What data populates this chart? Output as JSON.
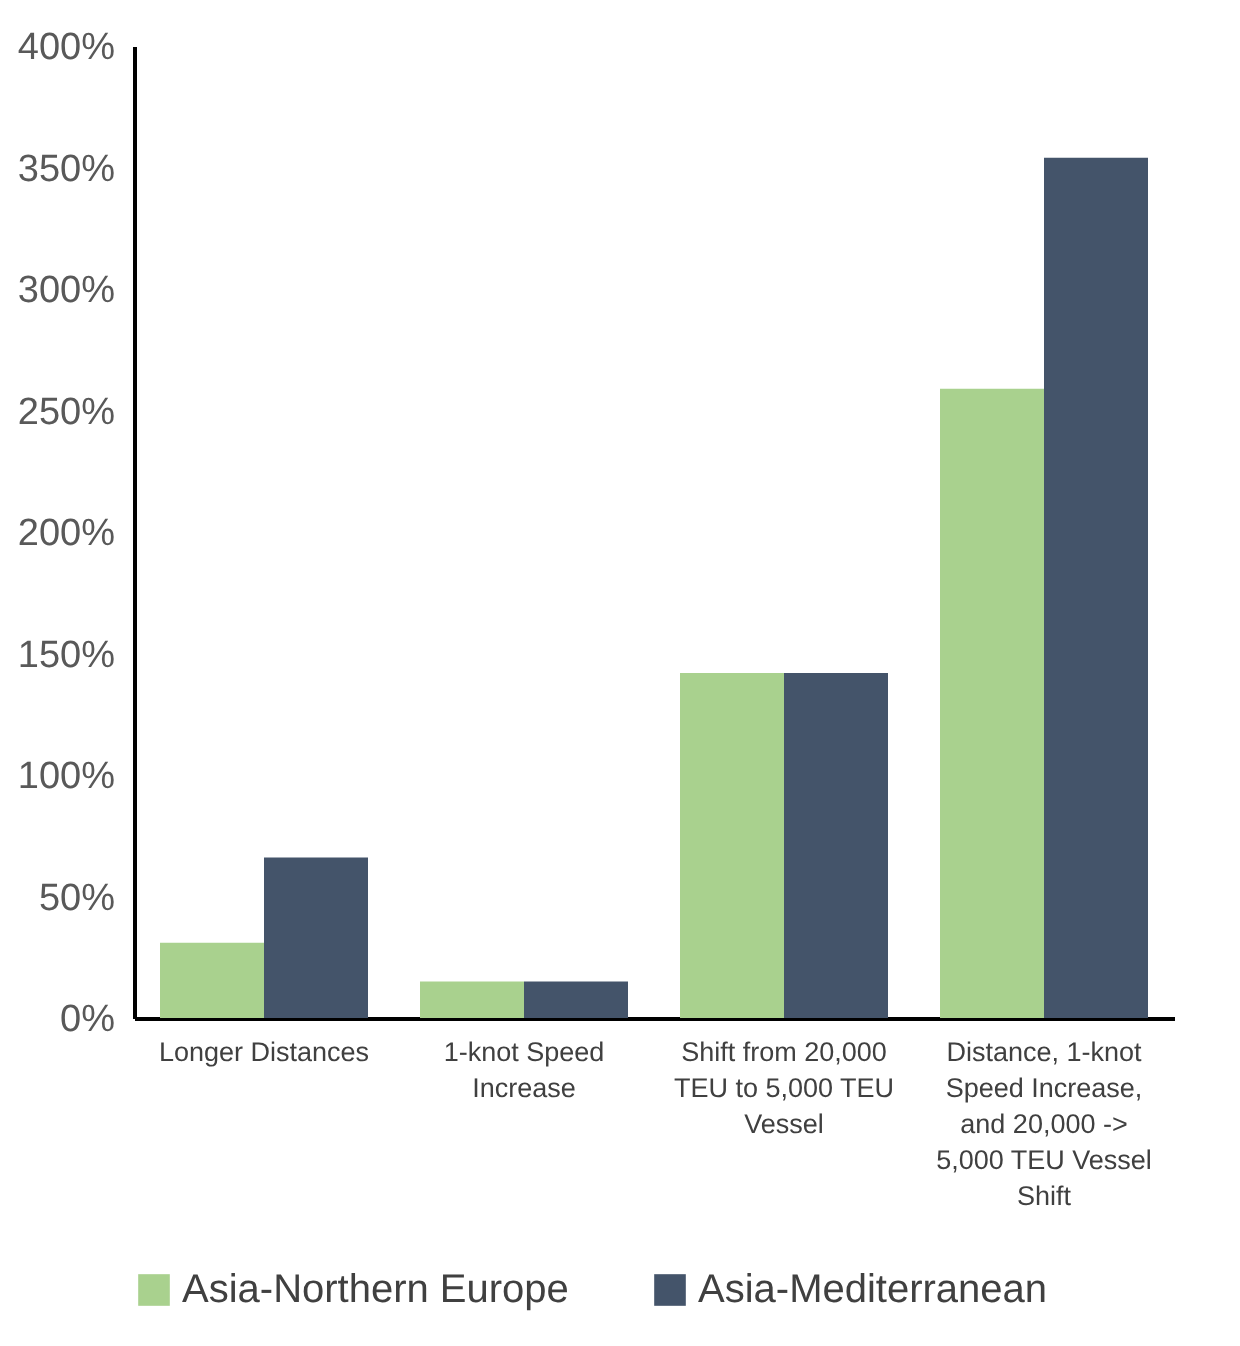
{
  "chart_data": {
    "type": "bar",
    "categories": [
      "Longer Distances",
      "1-knot Speed Increase",
      "Shift from 20,000 TEU to 5,000 TEU Vessel",
      "Distance, 1-knot Speed Increase, and 20,000 -> 5,000 TEU Vessel Shift"
    ],
    "series": [
      {
        "name": "Asia-Northern Europe",
        "color": "#a9d18e",
        "values": [
          31,
          15,
          142,
          259
        ]
      },
      {
        "name": "Asia-Mediterranean",
        "color": "#44546a",
        "values": [
          66,
          15,
          142,
          354
        ]
      }
    ],
    "ylim": [
      0,
      400
    ],
    "yticks": [
      {
        "value": 0,
        "label": "0%"
      },
      {
        "value": 50,
        "label": "50%"
      },
      {
        "value": 100,
        "label": "100%"
      },
      {
        "value": 150,
        "label": "150%"
      },
      {
        "value": 200,
        "label": "200%"
      },
      {
        "value": 250,
        "label": "250%"
      },
      {
        "value": 300,
        "label": "300%"
      },
      {
        "value": 350,
        "label": "350%"
      },
      {
        "value": 400,
        "label": "400%"
      }
    ],
    "grid": false,
    "legend": "bottom"
  }
}
